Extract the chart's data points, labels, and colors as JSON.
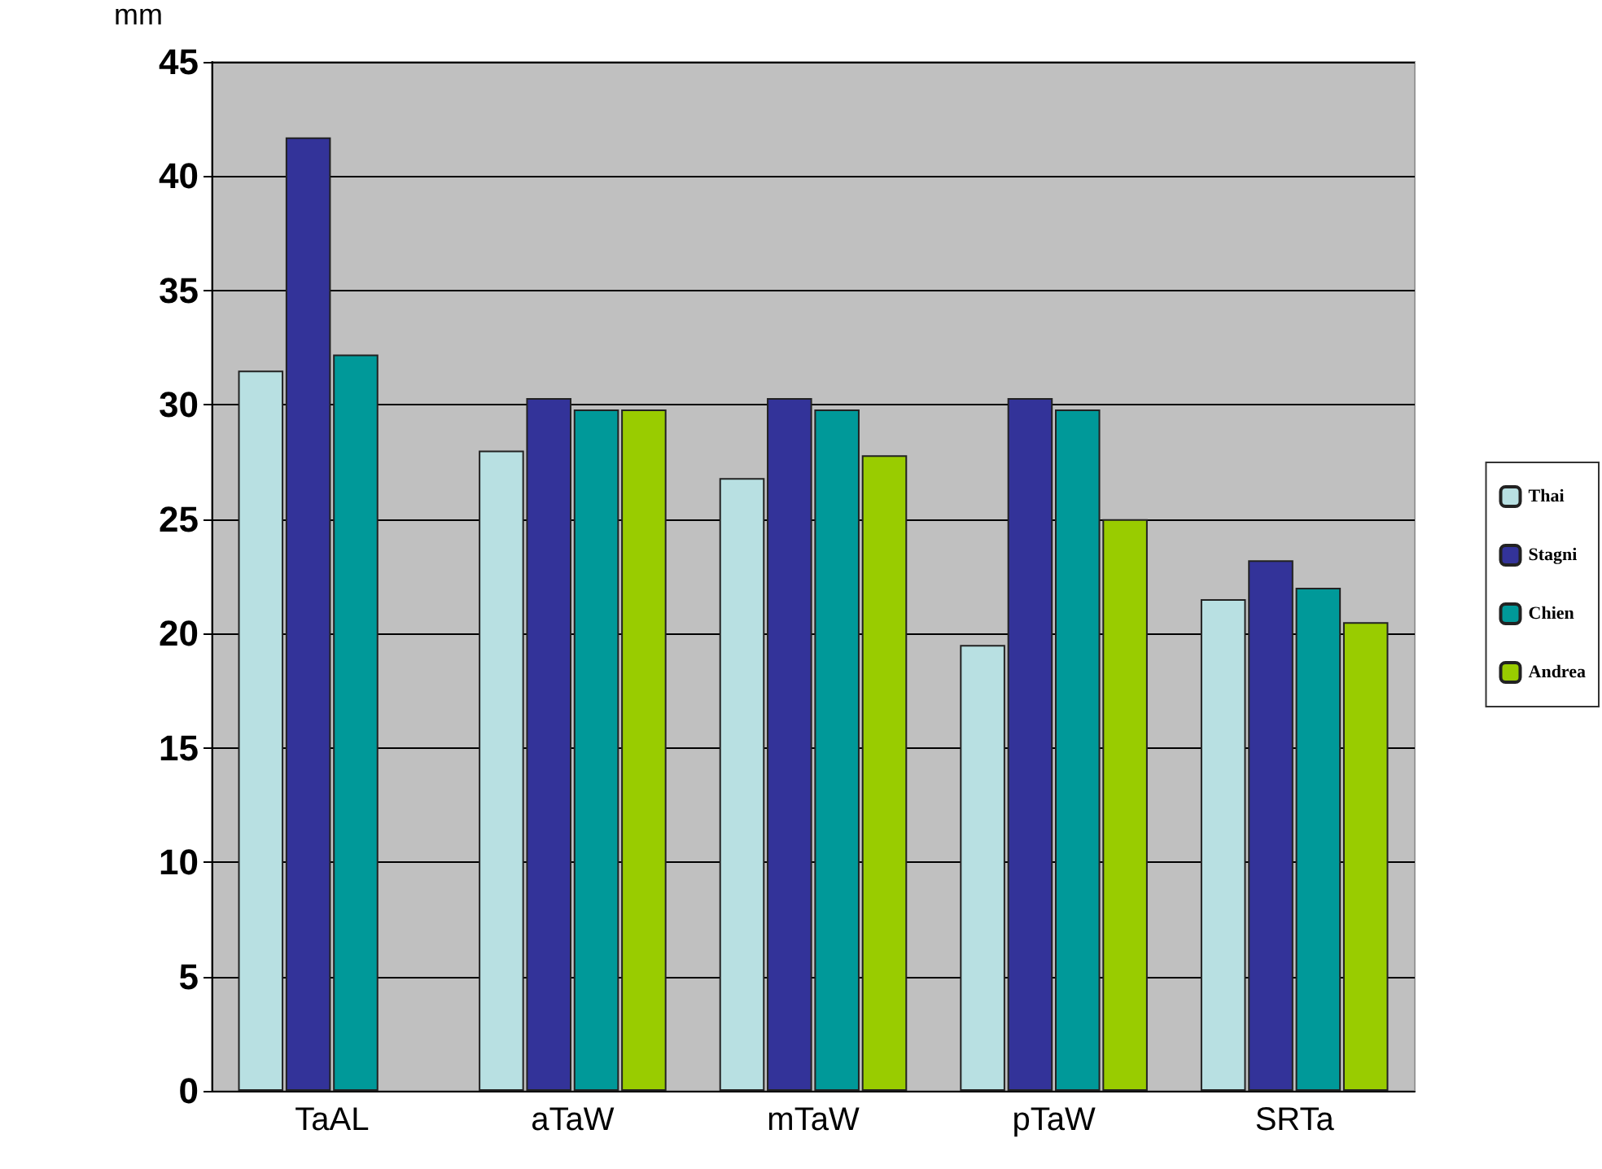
{
  "chart_data": {
    "type": "bar",
    "ylabel": "mm",
    "categories": [
      "TaAL",
      "aTaW",
      "mTaW",
      "pTaW",
      "SRTa"
    ],
    "series": [
      {
        "name": "Thai",
        "color": "#b8e0e2",
        "values": [
          31.5,
          28.0,
          26.8,
          19.5,
          21.5
        ]
      },
      {
        "name": "Stagni",
        "color": "#333399",
        "values": [
          41.7,
          30.3,
          30.3,
          30.3,
          23.2
        ]
      },
      {
        "name": "Chien",
        "color": "#009999",
        "values": [
          32.2,
          29.8,
          29.8,
          29.8,
          22.0
        ]
      },
      {
        "name": "Andrea",
        "color": "#99cc00",
        "values": [
          null,
          29.8,
          27.8,
          25.0,
          20.5
        ]
      }
    ],
    "ylim": [
      0,
      45
    ],
    "yticks": [
      0,
      5,
      10,
      15,
      20,
      25,
      30,
      35,
      40,
      45
    ],
    "grid": "y",
    "legend": "right"
  }
}
